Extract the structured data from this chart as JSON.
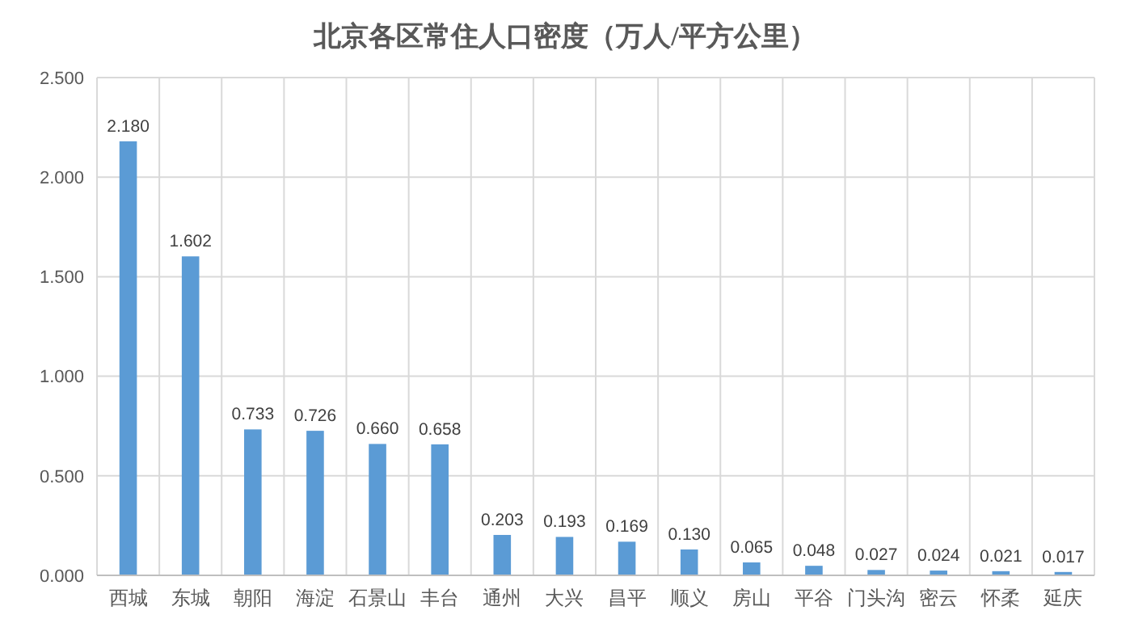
{
  "chart_data": {
    "type": "bar",
    "title": "北京各区常住人口密度（万人/平方公里）",
    "categories": [
      "西城",
      "东城",
      "朝阳",
      "海淀",
      "石景山",
      "丰台",
      "通州",
      "大兴",
      "昌平",
      "顺义",
      "房山",
      "平谷",
      "门头沟",
      "密云",
      "怀柔",
      "延庆"
    ],
    "values": [
      2.18,
      1.602,
      0.733,
      0.726,
      0.66,
      0.658,
      0.203,
      0.193,
      0.169,
      0.13,
      0.065,
      0.048,
      0.027,
      0.024,
      0.021,
      0.017
    ],
    "value_labels": [
      "2.180",
      "1.602",
      "0.733",
      "0.726",
      "0.660",
      "0.658",
      "0.203",
      "0.193",
      "0.169",
      "0.130",
      "0.065",
      "0.048",
      "0.027",
      "0.024",
      "0.021",
      "0.017"
    ],
    "color": "#5b9bd5",
    "ylim": [
      0,
      2.5
    ],
    "yticks": [
      {
        "value": 0,
        "label": "0.000"
      },
      {
        "value": 0.5,
        "label": "0.500"
      },
      {
        "value": 1,
        "label": "1.000"
      },
      {
        "value": 1.5,
        "label": "1.500"
      },
      {
        "value": 2,
        "label": "2.000"
      },
      {
        "value": 2.5,
        "label": "2.500"
      }
    ],
    "grid": true
  }
}
